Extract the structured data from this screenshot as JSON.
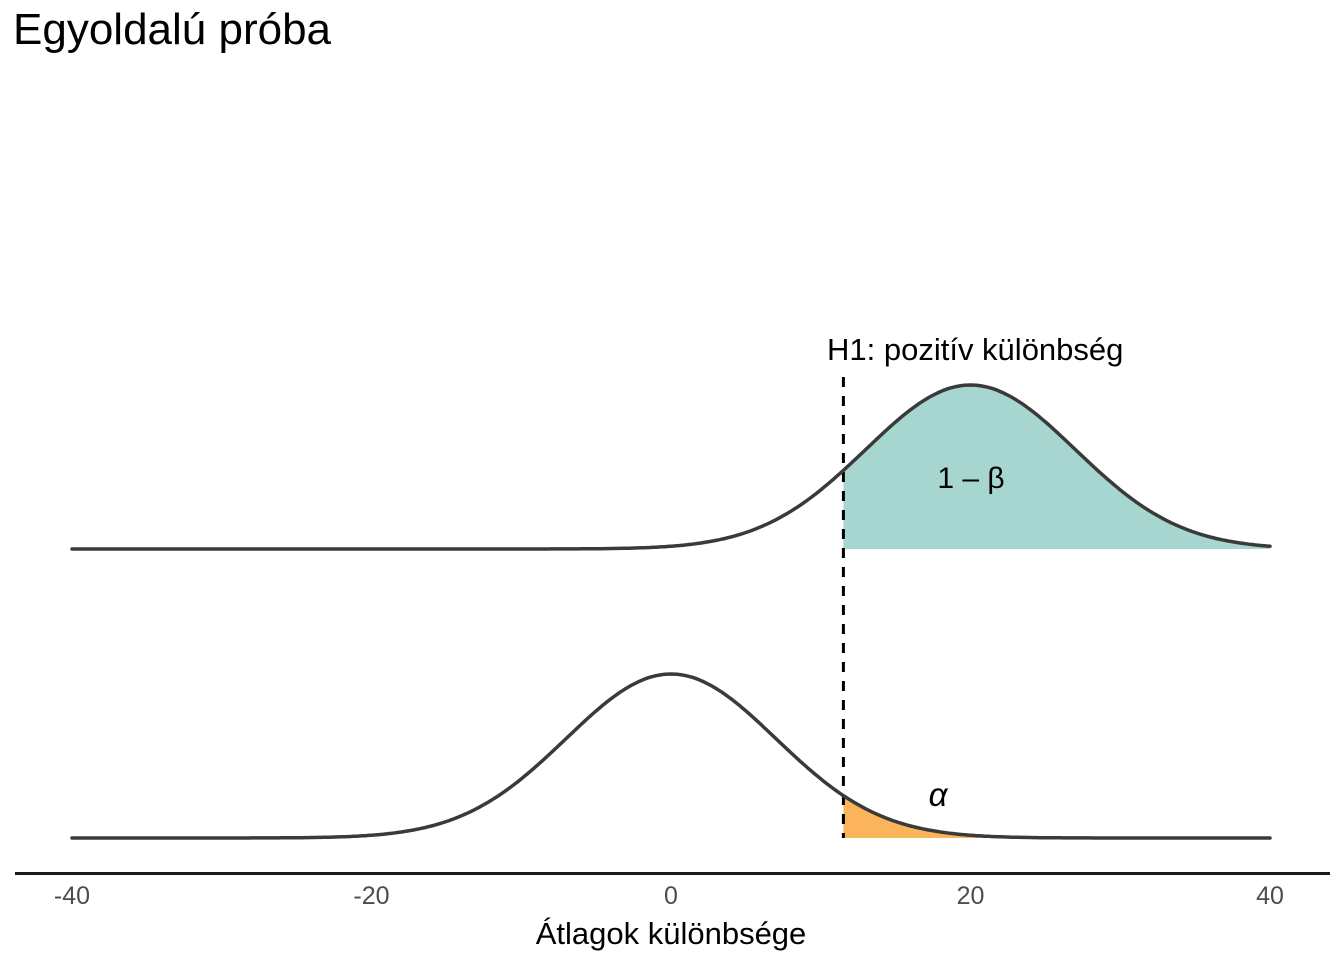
{
  "chart_data": {
    "type": "area",
    "title": "Egyoldalú próba",
    "xlabel": "Átlagok különbsége",
    "ylabel": "",
    "xlim": [
      -40,
      40
    ],
    "x_ticks": [
      -40,
      -20,
      0,
      20,
      40
    ],
    "x_tick_labels": [
      "-40",
      "-20",
      "0",
      "20",
      "40"
    ],
    "grid": false,
    "legend": false,
    "critical_value": 11.51,
    "critical_line_label": "H1: pozitív különbség",
    "critical_line_style": "dashed",
    "curves": [
      {
        "name": "alternative-distribution-H1",
        "row": "top",
        "mean": 20,
        "sd": 7,
        "shade_from": 11.51,
        "shade_to": 40,
        "shade_label": "1 – β",
        "shade_meaning": "power",
        "shade_color": "#A6D6CF"
      },
      {
        "name": "null-distribution-H0",
        "row": "bottom",
        "mean": 0,
        "sd": 7,
        "shade_from": 11.51,
        "shade_to": 40,
        "shade_label": "α",
        "shade_meaning": "significance level",
        "shade_color": "#FBB45C"
      }
    ],
    "colors": {
      "curve_stroke": "#3A3A3A",
      "dashed_line": "#000000",
      "axis_line": "#1A1A1A",
      "tick_label": "#4D4D4D",
      "text": "#000000",
      "background": "#FFFFFF",
      "power_fill": "#A6D6CF",
      "alpha_fill": "#FBB45C"
    }
  }
}
